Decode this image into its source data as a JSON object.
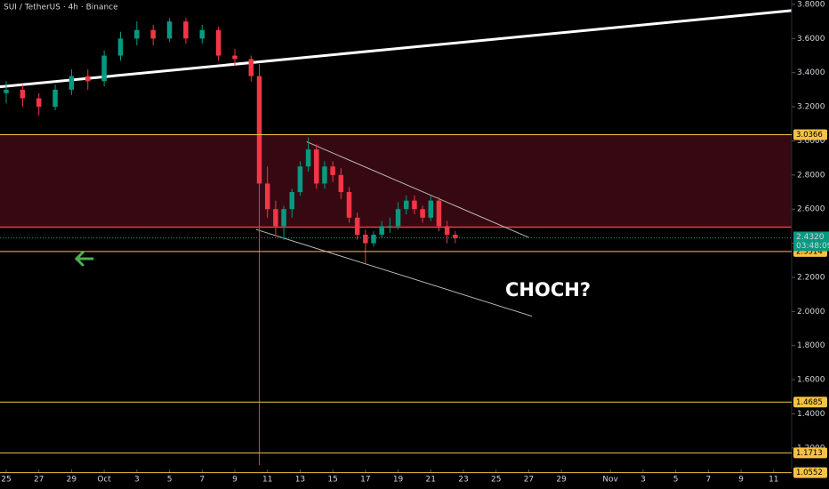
{
  "chart_data": {
    "type": "candlestick",
    "title": "SUI / TetherUS · 4h · Binance",
    "x": [
      0,
      1,
      2,
      3,
      4,
      5,
      6,
      7,
      8,
      9,
      10,
      11,
      12,
      13,
      14,
      15,
      15.5,
      16,
      16.5,
      17,
      17.5,
      18,
      18.5,
      19,
      19.5,
      20,
      20.5,
      21,
      21.5,
      22,
      22.5,
      23,
      23.5,
      24,
      24.5,
      25,
      25.5,
      26,
      26.5,
      27,
      27.5
    ],
    "open": [
      3.28,
      3.3,
      3.25,
      3.2,
      3.3,
      3.38,
      3.35,
      3.5,
      3.6,
      3.65,
      3.6,
      3.7,
      3.6,
      3.65,
      3.5,
      3.48,
      3.38,
      2.75,
      2.6,
      2.5,
      2.6,
      2.7,
      2.85,
      2.95,
      2.75,
      2.85,
      2.8,
      2.7,
      2.55,
      2.45,
      2.4,
      2.45,
      2.5,
      2.5,
      2.6,
      2.65,
      2.6,
      2.55,
      2.65,
      2.5,
      2.45
    ],
    "high": [
      3.35,
      3.33,
      3.28,
      3.33,
      3.42,
      3.42,
      3.53,
      3.64,
      3.7,
      3.68,
      3.72,
      3.72,
      3.68,
      3.67,
      3.54,
      3.5,
      3.45,
      2.85,
      2.65,
      2.62,
      2.72,
      2.88,
      3.02,
      2.98,
      2.88,
      2.88,
      2.84,
      2.73,
      2.58,
      2.48,
      2.47,
      2.53,
      2.55,
      2.64,
      2.68,
      2.68,
      2.62,
      2.68,
      2.67,
      2.53,
      2.47
    ],
    "low": [
      3.22,
      3.2,
      3.15,
      3.18,
      3.27,
      3.3,
      3.32,
      3.47,
      3.56,
      3.56,
      3.58,
      3.57,
      3.57,
      3.47,
      3.44,
      3.35,
      1.1,
      2.55,
      2.45,
      2.42,
      2.55,
      2.68,
      2.82,
      2.72,
      2.72,
      2.76,
      2.66,
      2.52,
      2.42,
      2.28,
      2.38,
      2.43,
      2.46,
      2.48,
      2.57,
      2.57,
      2.52,
      2.53,
      2.47,
      2.4,
      2.4
    ],
    "close": [
      3.3,
      3.25,
      3.2,
      3.3,
      3.38,
      3.35,
      3.5,
      3.6,
      3.65,
      3.6,
      3.7,
      3.6,
      3.65,
      3.5,
      3.48,
      3.38,
      2.75,
      2.6,
      2.5,
      2.6,
      2.7,
      2.85,
      2.95,
      2.75,
      2.85,
      2.8,
      2.7,
      2.55,
      2.45,
      2.4,
      2.45,
      2.5,
      2.5,
      2.6,
      2.65,
      2.6,
      2.55,
      2.65,
      2.5,
      2.45,
      2.43
    ],
    "up_color": "#089981",
    "down_color": "#f23645",
    "xlim": [
      -0.38,
      48.1
    ],
    "xticks": [
      {
        "value": 0,
        "label": "25"
      },
      {
        "value": 2,
        "label": "27"
      },
      {
        "value": 4,
        "label": "29"
      },
      {
        "value": 6,
        "label": "Oct"
      },
      {
        "value": 8,
        "label": "3"
      },
      {
        "value": 10,
        "label": "5"
      },
      {
        "value": 12,
        "label": "7"
      },
      {
        "value": 14,
        "label": "9"
      },
      {
        "value": 16,
        "label": "11"
      },
      {
        "value": 18,
        "label": "13"
      },
      {
        "value": 20,
        "label": "15"
      },
      {
        "value": 22,
        "label": "17"
      },
      {
        "value": 24,
        "label": "19"
      },
      {
        "value": 26,
        "label": "21"
      },
      {
        "value": 28,
        "label": "23"
      },
      {
        "value": 30,
        "label": "25"
      },
      {
        "value": 32,
        "label": "27"
      },
      {
        "value": 34,
        "label": "29"
      },
      {
        "value": 37,
        "label": "Nov"
      },
      {
        "value": 39,
        "label": "3"
      },
      {
        "value": 41,
        "label": "5"
      },
      {
        "value": 43,
        "label": "7"
      },
      {
        "value": 45,
        "label": "9"
      },
      {
        "value": 47,
        "label": "11"
      }
    ],
    "ylim": [
      1.074,
      3.826
    ],
    "yticks": [
      {
        "value": 1.2,
        "label": "1.2000"
      },
      {
        "value": 1.4,
        "label": "1.4000"
      },
      {
        "value": 1.6,
        "label": "1.6000"
      },
      {
        "value": 1.8,
        "label": "1.8000"
      },
      {
        "value": 2,
        "label": "2.0000"
      },
      {
        "value": 2.2,
        "label": "2.2000"
      },
      {
        "value": 2.4,
        "label": "2.4000"
      },
      {
        "value": 2.6,
        "label": "2.6000"
      },
      {
        "value": 2.8,
        "label": "2.8000"
      },
      {
        "value": 3,
        "label": "3.0000"
      },
      {
        "value": 3.2,
        "label": "3.2000"
      },
      {
        "value": 3.4,
        "label": "3.4000"
      },
      {
        "value": 3.6,
        "label": "3.6000"
      },
      {
        "value": 3.8,
        "label": "3.8000"
      }
    ],
    "levels": [
      {
        "value": 3.0366,
        "label": "3.0366"
      },
      {
        "value": 2.3514,
        "label": "2.3514"
      },
      {
        "value": 1.4685,
        "label": "1.4685"
      },
      {
        "value": 1.1713,
        "label": "1.1713"
      },
      {
        "value": 1.0552,
        "label": "1.0552"
      }
    ],
    "level_color": "#f5c242",
    "last_price": {
      "value": 2.432,
      "label": "2.4320",
      "countdown": "03:48:09"
    },
    "trendlines": [
      {
        "x": [
          -0.38,
          48.1
        ],
        "y": [
          3.317,
          3.764
        ],
        "color": "#ffffff"
      },
      {
        "x": [
          15.3,
          32.2
        ],
        "y": [
          2.481,
          1.972
        ],
        "color": "#bbbbbb"
      },
      {
        "x": [
          18.4,
          32.0
        ],
        "y": [
          2.995,
          2.434
        ],
        "color": "#bbbbbb"
      }
    ],
    "annotation": "CHOCH?"
  }
}
